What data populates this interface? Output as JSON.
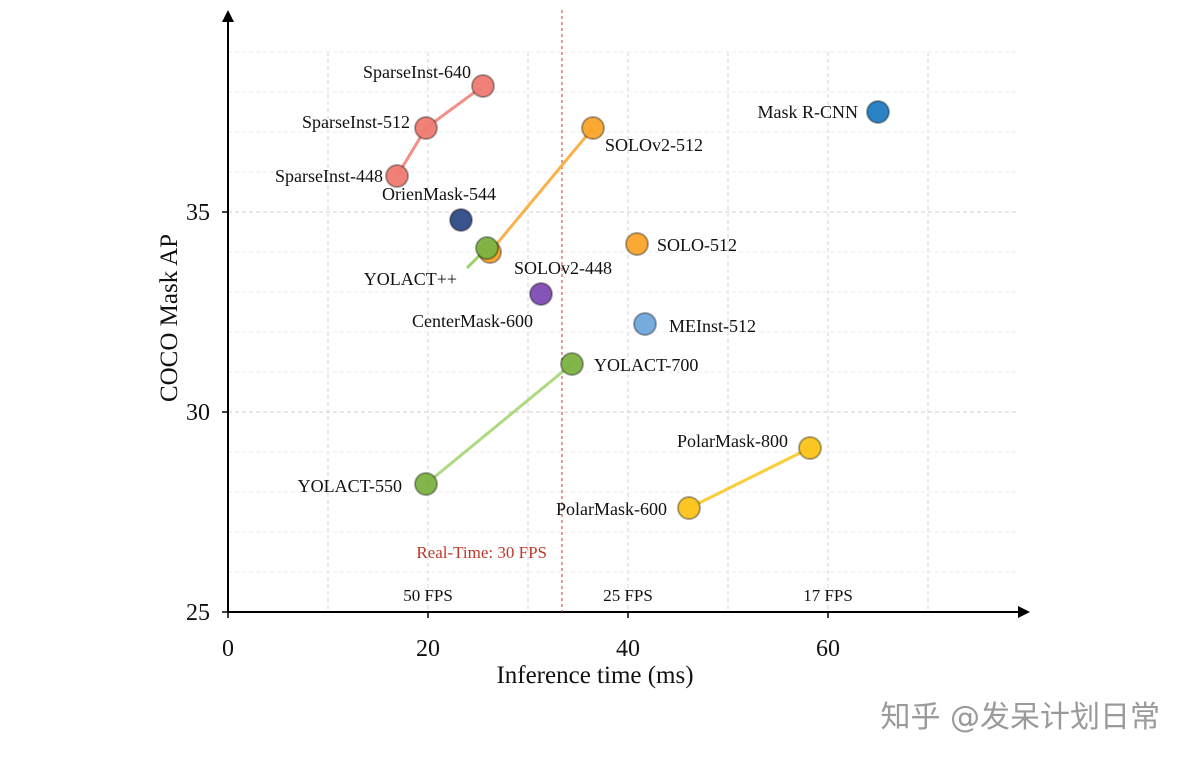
{
  "chart_data": {
    "type": "scatter",
    "xlabel": "Inference time (ms)",
    "ylabel": "COCO Mask AP",
    "xlim": [
      0,
      79.7
    ],
    "ylim": [
      25,
      39.9
    ],
    "x_ticks": [
      0,
      20,
      40,
      60
    ],
    "y_ticks": [
      25,
      30,
      35
    ],
    "grid": true,
    "points": [
      {
        "label": "SparseInst-448",
        "x": 16.9,
        "y": 35.9,
        "color": "#f07b72",
        "group": "sparseinst"
      },
      {
        "label": "SparseInst-512",
        "x": 19.8,
        "y": 37.1,
        "color": "#f07b72",
        "group": "sparseinst"
      },
      {
        "label": "SparseInst-640",
        "x": 25.5,
        "y": 38.15,
        "color": "#f07b72",
        "group": "sparseinst"
      },
      {
        "label": "Mask R-CNN",
        "x": 65.0,
        "y": 37.5,
        "color": "#1f7cc1",
        "group": "maskrcnn"
      },
      {
        "label": "SOLOv2-448",
        "x": 26.2,
        "y": 34.0,
        "color": "#f9a52a",
        "group": "solov2"
      },
      {
        "label": "SOLOv2-512",
        "x": 36.5,
        "y": 37.1,
        "color": "#f9a52a",
        "group": "solov2"
      },
      {
        "label": "OrienMask-544",
        "x": 23.3,
        "y": 34.8,
        "color": "#2f4a86",
        "group": "orienmask"
      },
      {
        "label": "YOLACT++",
        "x": 25.9,
        "y": 34.1,
        "color": "#7cb342",
        "group": "yolactpp"
      },
      {
        "label": "SOLO-512",
        "x": 40.9,
        "y": 34.2,
        "color": "#f9a52a",
        "group": "solo"
      },
      {
        "label": "CenterMask-600",
        "x": 31.3,
        "y": 32.95,
        "color": "#7e4bb3",
        "group": "centermask"
      },
      {
        "label": "MEInst-512",
        "x": 41.7,
        "y": 32.2,
        "color": "#6fa8dc",
        "group": "meinst"
      },
      {
        "label": "YOLACT-550",
        "x": 19.8,
        "y": 28.2,
        "color": "#7cb342",
        "group": "yolact"
      },
      {
        "label": "YOLACT-700",
        "x": 34.4,
        "y": 31.2,
        "color": "#7cb342",
        "group": "yolact"
      },
      {
        "label": "PolarMask-600",
        "x": 46.1,
        "y": 27.6,
        "color": "#fcc419",
        "group": "polarmask"
      },
      {
        "label": "PolarMask-800",
        "x": 58.2,
        "y": 29.1,
        "color": "#fcc419",
        "group": "polarmask"
      }
    ],
    "lines": [
      {
        "group": "sparseinst",
        "color": "#f07b72"
      },
      {
        "group": "solov2",
        "color": "#f9a52a"
      },
      {
        "group": "yolact",
        "color": "#9ed36a"
      },
      {
        "group": "polarmask",
        "color": "#fcc419"
      }
    ],
    "realtime": {
      "x": 33.4,
      "label": "Real-Time: 30 FPS",
      "color": "#c0392b"
    },
    "fps_labels": [
      {
        "x": 20,
        "text": "50 FPS"
      },
      {
        "x": 40,
        "text": "25 FPS"
      },
      {
        "x": 60,
        "text": "17 FPS"
      }
    ]
  },
  "watermark": "知乎 @发呆计划日常"
}
